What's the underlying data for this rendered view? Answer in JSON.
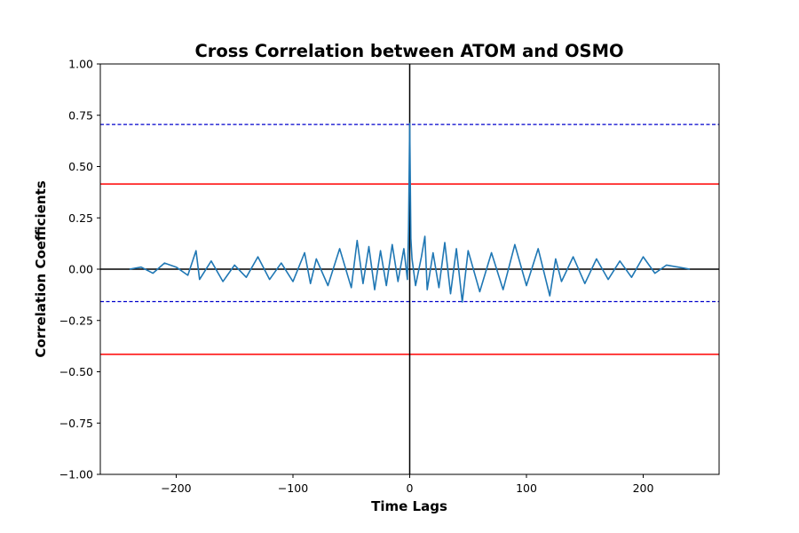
{
  "chart_data": {
    "type": "line",
    "title": "Cross Correlation between ATOM and OSMO",
    "xlabel": "Time Lags",
    "ylabel": "Correlation Coefficients",
    "xlim": [
      -265,
      265
    ],
    "ylim": [
      -1.0,
      1.0
    ],
    "x_ticks": [
      -200,
      -100,
      0,
      100,
      200
    ],
    "x_tick_labels": [
      "−200",
      "−100",
      "0",
      "100",
      "200"
    ],
    "y_ticks": [
      1.0,
      0.75,
      0.5,
      0.25,
      0.0,
      -0.25,
      -0.5,
      -0.75,
      -1.0
    ],
    "y_tick_labels": [
      "1.00",
      "0.75",
      "0.50",
      "0.25",
      "0.00",
      "−0.25",
      "−0.50",
      "−0.75",
      "−1.00"
    ],
    "grid": false,
    "series_color": "#1f77b4",
    "reference_lines": [
      {
        "kind": "horizontal",
        "value": 0.705,
        "style": "dashed",
        "color": "#0000cc"
      },
      {
        "kind": "horizontal",
        "value": -0.158,
        "style": "dashed",
        "color": "#0000cc"
      },
      {
        "kind": "horizontal",
        "value": 0.415,
        "style": "solid",
        "color": "#ff0000"
      },
      {
        "kind": "horizontal",
        "value": -0.415,
        "style": "solid",
        "color": "#ff0000"
      },
      {
        "kind": "horizontal",
        "value": 0.0,
        "style": "solid",
        "color": "#000000"
      },
      {
        "kind": "vertical",
        "value": 0,
        "style": "solid",
        "color": "#000000"
      }
    ],
    "series": [
      {
        "x": [
          -240,
          -230,
          -220,
          -210,
          -200,
          -190,
          -183,
          -180,
          -170,
          -160,
          -150,
          -140,
          -130,
          -120,
          -110,
          -100,
          -90,
          -85,
          -80,
          -70,
          -60,
          -50,
          -45,
          -40,
          -35,
          -30,
          -25,
          -20,
          -15,
          -10,
          -5,
          -2,
          -1,
          0,
          1,
          2,
          5,
          10,
          13,
          15,
          20,
          25,
          30,
          35,
          40,
          45,
          50,
          60,
          70,
          80,
          90,
          100,
          110,
          120,
          125,
          130,
          140,
          150,
          160,
          170,
          180,
          190,
          200,
          210,
          220,
          230,
          240
        ],
        "y": [
          0.0,
          0.01,
          -0.02,
          0.03,
          0.01,
          -0.03,
          0.09,
          -0.05,
          0.04,
          -0.06,
          0.02,
          -0.04,
          0.06,
          -0.05,
          0.03,
          -0.06,
          0.08,
          -0.07,
          0.05,
          -0.08,
          0.1,
          -0.09,
          0.14,
          -0.07,
          0.11,
          -0.1,
          0.09,
          -0.08,
          0.12,
          -0.06,
          0.1,
          -0.05,
          0.2,
          0.71,
          0.15,
          0.05,
          -0.08,
          0.06,
          0.16,
          -0.1,
          0.08,
          -0.09,
          0.13,
          -0.12,
          0.1,
          -0.16,
          0.09,
          -0.11,
          0.08,
          -0.1,
          0.12,
          -0.08,
          0.1,
          -0.13,
          0.05,
          -0.06,
          0.06,
          -0.07,
          0.05,
          -0.05,
          0.04,
          -0.04,
          0.06,
          -0.02,
          0.02,
          0.01,
          0.0
        ]
      }
    ]
  }
}
